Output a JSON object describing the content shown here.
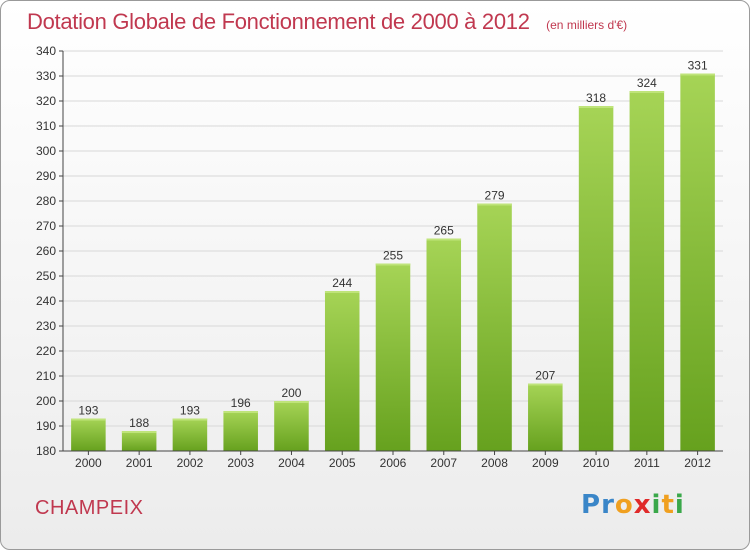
{
  "title": "Dotation Globale de Fonctionnement de 2000 à 2012",
  "subtitle": "(en milliers d'€)",
  "commune": "CHAMPEIX",
  "logo": {
    "letters": [
      "P",
      "r",
      "o",
      "x",
      "i",
      "t",
      "i"
    ],
    "colors": [
      "#3a86c8",
      "#3a86c8",
      "#f0a020",
      "#e02a2a",
      "#3aa84a",
      "#f0a020",
      "#3aa84a"
    ]
  },
  "colors": {
    "bar_top": "#a6d456",
    "bar_bottom": "#66a11e",
    "grid": "#d8d8d8",
    "axis": "#444444",
    "title": "#c0384f"
  },
  "chart_data": {
    "type": "bar",
    "categories": [
      "2000",
      "2001",
      "2002",
      "2003",
      "2004",
      "2005",
      "2006",
      "2007",
      "2008",
      "2009",
      "2010",
      "2011",
      "2012"
    ],
    "values": [
      193,
      188,
      193,
      196,
      200,
      244,
      255,
      265,
      279,
      207,
      318,
      324,
      331
    ],
    "ylim": [
      180,
      340
    ],
    "yticks": [
      180,
      190,
      200,
      210,
      220,
      230,
      240,
      250,
      260,
      270,
      280,
      290,
      300,
      310,
      320,
      330,
      340
    ],
    "grid": true,
    "data_labels": true
  }
}
